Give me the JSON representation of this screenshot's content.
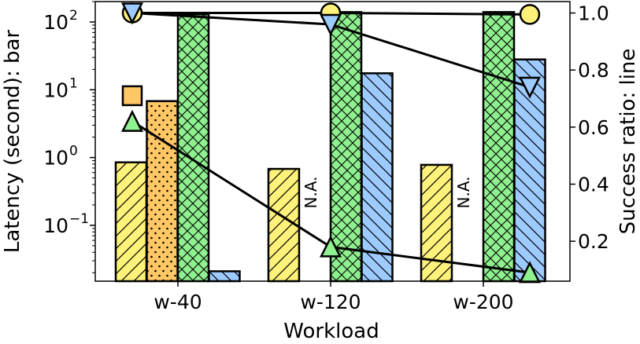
{
  "chart_data": {
    "type": "bar",
    "xlabel": "Workload",
    "ylabel_left": "Latency (second): bar",
    "ylabel_right": "Success ratio: line",
    "categories": [
      "w-40",
      "w-120",
      "w-200"
    ],
    "left_axis": {
      "scale": "log",
      "ylim": [
        0.015,
        200
      ],
      "ticks": [
        {
          "value": 100,
          "base": "10",
          "exp": "2"
        },
        {
          "value": 10,
          "base": "10",
          "exp": "1"
        },
        {
          "value": 1,
          "base": "10",
          "exp": "0"
        },
        {
          "value": 0.1,
          "base": "10",
          "exp": "−1"
        }
      ]
    },
    "right_axis": {
      "scale": "linear",
      "ylim": [
        0.06,
        1.04
      ],
      "ticks": [
        "1.0",
        "0.8",
        "0.6",
        "0.4",
        "0.2"
      ]
    },
    "bar_series": [
      {
        "values": [
          0.85,
          0.68,
          0.78
        ],
        "color": "#fff27a",
        "pattern": "diag-forward"
      },
      {
        "values": [
          6.8,
          null,
          null
        ],
        "color": "#ffc766",
        "pattern": "dots"
      },
      {
        "values": [
          130,
          140,
          140
        ],
        "color": "#8ff08f",
        "pattern": "cross"
      },
      {
        "values": [
          0.021,
          17.5,
          28
        ],
        "color": "#9dcbff",
        "pattern": "diag-back"
      }
    ],
    "na_label": "N.A.",
    "line_series": [
      {
        "marker": "circle",
        "color": "#fff27a",
        "values": [
          1.0,
          1.0,
          0.995
        ]
      },
      {
        "marker": "triangle-down",
        "color": "#9dcbff",
        "values": [
          1.0,
          0.96,
          0.74
        ]
      },
      {
        "marker": "square",
        "color": "#ffc766",
        "values": [
          0.71,
          null,
          null
        ]
      },
      {
        "marker": "triangle-up",
        "color": "#8ff08f",
        "values": [
          0.62,
          0.18,
          0.09
        ]
      }
    ]
  }
}
